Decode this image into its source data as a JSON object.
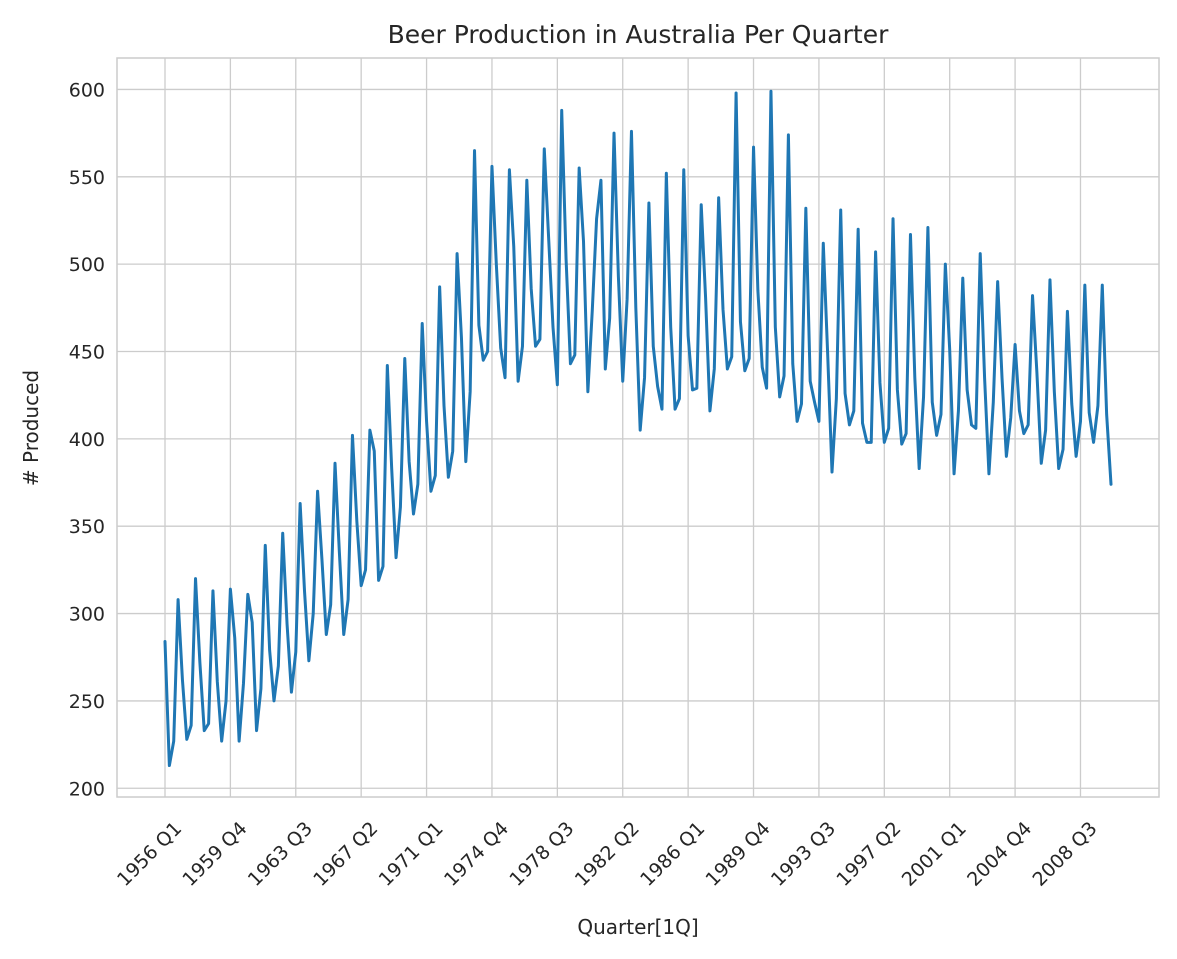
{
  "colors": {
    "series": "#1f77b4",
    "grid": "#cccccc",
    "text": "#262626"
  },
  "chart_data": {
    "type": "line",
    "title": "Beer Production in Australia Per Quarter",
    "xlabel": "Quarter[1Q]",
    "ylabel": "# Produced",
    "ylim": [
      195,
      618
    ],
    "yticks": [
      200,
      250,
      300,
      350,
      400,
      450,
      500,
      550,
      600
    ],
    "xticks": [
      "1956 Q1",
      "1959 Q4",
      "1963 Q3",
      "1967 Q2",
      "1971 Q1",
      "1974 Q4",
      "1978 Q3",
      "1982 Q2",
      "1986 Q1",
      "1989 Q4",
      "1993 Q3",
      "1997 Q2",
      "2001 Q1",
      "2004 Q4",
      "2008 Q3"
    ],
    "x_start": "1956 Q1",
    "x_end": "2010 Q2",
    "grid": true,
    "series": [
      {
        "values": [
          284,
          213,
          227,
          308,
          262,
          228,
          236,
          320,
          272,
          233,
          237,
          313,
          261,
          227,
          250,
          314,
          286,
          227,
          260,
          311,
          295,
          233,
          257,
          339,
          279,
          250,
          270,
          346,
          294,
          255,
          278,
          363,
          313,
          273,
          300,
          370,
          331,
          288,
          305,
          386,
          335,
          288,
          308,
          402,
          353,
          316,
          325,
          405,
          393,
          319,
          327,
          442,
          383,
          332,
          361,
          446,
          387,
          357,
          374,
          466,
          410,
          370,
          379,
          487,
          419,
          378,
          393,
          506,
          458,
          387,
          427,
          565,
          465,
          445,
          450,
          556,
          500,
          452,
          435,
          554,
          510,
          433,
          453,
          548,
          486,
          453,
          457,
          566,
          515,
          464,
          431,
          588,
          503,
          443,
          448,
          555,
          513,
          427,
          473,
          526,
          548,
          440,
          469,
          575,
          493,
          433,
          480,
          576,
          475,
          405,
          435,
          535,
          453,
          430,
          417,
          552,
          464,
          417,
          423,
          554,
          459,
          428,
          429,
          534,
          481,
          416,
          440,
          538,
          474,
          440,
          447,
          598,
          467,
          439,
          446,
          567,
          485,
          441,
          429,
          599,
          464,
          424,
          436,
          574,
          443,
          410,
          420,
          532,
          433,
          421,
          410,
          512,
          449,
          381,
          423,
          531,
          426,
          408,
          416,
          520,
          409,
          398,
          398,
          507,
          432,
          398,
          406,
          526,
          428,
          397,
          403,
          517,
          435,
          383,
          424,
          521,
          421,
          402,
          414,
          500,
          451,
          380,
          416,
          492,
          428,
          408,
          406,
          506,
          435,
          380,
          421,
          490,
          435,
          390,
          412,
          454,
          416,
          403,
          408,
          482,
          438,
          386,
          405,
          491,
          427,
          383,
          394,
          473,
          420,
          390,
          410,
          488,
          415,
          398,
          419,
          488,
          414,
          374
        ]
      }
    ]
  }
}
